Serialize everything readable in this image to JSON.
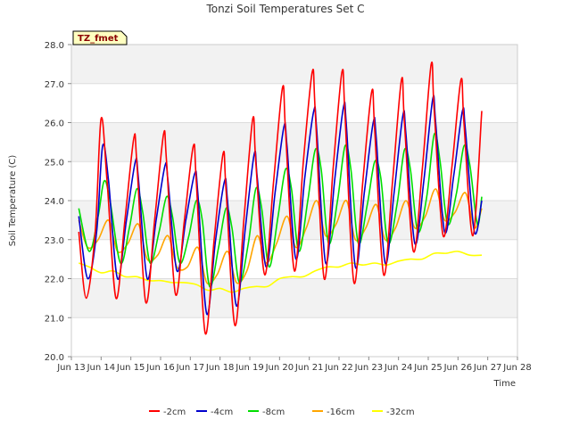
{
  "chart_data": {
    "type": "line",
    "title": "Tonzi Soil Temperatures Set C",
    "xlabel": "Time",
    "ylabel": "Soil Temperature (C)",
    "tag": "TZ_fmet",
    "xlim": [
      13,
      28
    ],
    "ylim": [
      20.0,
      28.0
    ],
    "x_ticks": [
      13,
      14,
      15,
      16,
      17,
      18,
      19,
      20,
      21,
      22,
      23,
      24,
      25,
      26,
      27,
      28
    ],
    "x_tick_labels": [
      "Jun 13",
      "Jun 14",
      "Jun 15",
      "Jun 16",
      "Jun 17",
      "Jun 18",
      "Jun 19",
      "Jun 20",
      "Jun 21",
      "Jun 22",
      "Jun 23",
      "Jun 24",
      "Jun 25",
      "Jun 26",
      "Jun 27",
      "Jun 28"
    ],
    "y_ticks": [
      20.0,
      21.0,
      22.0,
      23.0,
      24.0,
      25.0,
      26.0,
      27.0,
      28.0
    ],
    "y_tick_labels": [
      "20.0",
      "21.0",
      "22.0",
      "23.0",
      "24.0",
      "25.0",
      "26.0",
      "27.0",
      "28.0"
    ],
    "legend_position": "bottom",
    "series": [
      {
        "name": "-2cm",
        "color": "#ff0000",
        "x": [
          13.25,
          13.5,
          13.8,
          14.0,
          14.2,
          14.5,
          14.8,
          15.1,
          15.2,
          15.5,
          15.8,
          16.1,
          16.2,
          16.5,
          16.8,
          17.1,
          17.2,
          17.5,
          17.8,
          18.1,
          18.2,
          18.5,
          18.8,
          19.1,
          19.2,
          19.5,
          19.8,
          20.1,
          20.2,
          20.5,
          20.8,
          21.1,
          21.2,
          21.5,
          21.8,
          22.1,
          22.2,
          22.5,
          22.8,
          23.1,
          23.2,
          23.5,
          23.8,
          24.1,
          24.2,
          24.5,
          24.8,
          25.1,
          25.2,
          25.5,
          25.8,
          26.1,
          26.2,
          26.5,
          26.8
        ],
        "y": [
          23.2,
          21.5,
          23.2,
          26.1,
          24.5,
          21.5,
          23.5,
          25.6,
          25.0,
          21.4,
          23.5,
          25.7,
          25.0,
          21.6,
          23.5,
          25.4,
          24.5,
          20.6,
          23.0,
          25.2,
          24.3,
          20.8,
          23.5,
          26.1,
          25.0,
          22.1,
          24.5,
          26.9,
          25.8,
          22.2,
          25.0,
          27.3,
          26.3,
          22.0,
          24.8,
          27.3,
          26.2,
          21.9,
          24.5,
          26.8,
          25.8,
          22.1,
          24.5,
          27.1,
          26.0,
          22.7,
          24.8,
          27.5,
          26.3,
          23.1,
          24.9,
          27.1,
          26.0,
          23.1,
          26.3
        ]
      },
      {
        "name": "-4cm",
        "color": "#0000cc",
        "x": [
          13.25,
          13.55,
          13.85,
          14.05,
          14.25,
          14.55,
          14.85,
          15.15,
          15.25,
          15.55,
          15.85,
          16.15,
          16.25,
          16.55,
          16.85,
          17.15,
          17.25,
          17.55,
          17.85,
          18.15,
          18.25,
          18.55,
          18.85,
          19.15,
          19.25,
          19.55,
          19.85,
          20.15,
          20.25,
          20.55,
          20.85,
          21.15,
          21.25,
          21.55,
          21.85,
          22.15,
          22.25,
          22.55,
          22.85,
          23.15,
          23.25,
          23.55,
          23.85,
          24.15,
          24.25,
          24.55,
          24.85,
          25.15,
          25.25,
          25.55,
          25.85,
          26.15,
          26.25,
          26.55,
          26.8
        ],
        "y": [
          23.6,
          22.0,
          23.2,
          25.4,
          24.5,
          22.0,
          23.5,
          25.0,
          24.6,
          22.0,
          23.5,
          24.9,
          24.5,
          22.2,
          23.5,
          24.7,
          24.2,
          21.1,
          23.0,
          24.5,
          24.0,
          21.3,
          23.3,
          25.2,
          24.6,
          22.3,
          24.2,
          25.9,
          25.4,
          22.5,
          24.6,
          26.3,
          25.8,
          22.4,
          24.5,
          26.4,
          25.9,
          22.3,
          24.2,
          26.0,
          25.6,
          22.4,
          24.2,
          26.2,
          25.7,
          22.9,
          24.5,
          26.6,
          26.0,
          23.2,
          24.6,
          26.3,
          25.8,
          23.2,
          24.0
        ]
      },
      {
        "name": "-8cm",
        "color": "#00dd00",
        "x": [
          13.25,
          13.6,
          13.9,
          14.1,
          14.3,
          14.65,
          14.95,
          15.2,
          15.4,
          15.65,
          15.95,
          16.2,
          16.4,
          16.65,
          16.95,
          17.2,
          17.4,
          17.65,
          17.95,
          18.2,
          18.4,
          18.65,
          18.95,
          19.2,
          19.4,
          19.65,
          19.95,
          20.2,
          20.4,
          20.65,
          20.95,
          21.2,
          21.4,
          21.65,
          21.95,
          22.2,
          22.4,
          22.65,
          22.95,
          23.2,
          23.4,
          23.65,
          23.95,
          24.2,
          24.4,
          24.65,
          24.95,
          25.2,
          25.4,
          25.65,
          25.95,
          26.2,
          26.4,
          26.65,
          26.8
        ],
        "y": [
          23.8,
          22.7,
          23.6,
          24.5,
          24.0,
          22.4,
          23.3,
          24.3,
          23.7,
          22.4,
          23.2,
          24.1,
          23.6,
          22.4,
          23.1,
          24.0,
          23.5,
          21.8,
          22.8,
          23.8,
          23.3,
          21.9,
          22.9,
          24.3,
          23.8,
          22.3,
          23.6,
          24.8,
          24.3,
          22.7,
          24.0,
          25.3,
          24.8,
          22.9,
          24.0,
          25.4,
          24.8,
          22.9,
          23.9,
          25.0,
          24.6,
          22.9,
          23.9,
          25.3,
          24.8,
          23.2,
          24.1,
          25.7,
          25.0,
          23.4,
          24.2,
          25.4,
          24.9,
          23.4,
          24.1
        ]
      },
      {
        "name": "-16cm",
        "color": "#ffa500",
        "x": [
          13.25,
          13.55,
          13.9,
          14.25,
          14.55,
          14.9,
          15.25,
          15.55,
          15.9,
          16.25,
          16.55,
          16.9,
          17.25,
          17.55,
          17.9,
          18.25,
          18.55,
          18.9,
          19.25,
          19.55,
          19.9,
          20.25,
          20.55,
          20.9,
          21.25,
          21.55,
          21.9,
          22.25,
          22.55,
          22.9,
          23.25,
          23.55,
          23.9,
          24.25,
          24.55,
          24.9,
          25.25,
          25.55,
          25.9,
          26.25,
          26.55,
          26.8
        ],
        "y": [
          23.5,
          22.8,
          23.0,
          23.5,
          22.7,
          22.9,
          23.4,
          22.5,
          22.6,
          23.1,
          22.3,
          22.3,
          22.8,
          21.9,
          22.1,
          22.7,
          21.9,
          22.2,
          23.1,
          22.4,
          22.9,
          23.6,
          22.8,
          23.3,
          24.0,
          23.1,
          23.4,
          24.0,
          23.0,
          23.3,
          23.9,
          23.0,
          23.3,
          24.0,
          23.3,
          23.6,
          24.3,
          23.5,
          23.7,
          24.2,
          23.3,
          23.8
        ]
      },
      {
        "name": "-32cm",
        "color": "#ffff00",
        "x": [
          13.25,
          13.6,
          14.0,
          14.4,
          14.8,
          15.2,
          15.6,
          16.0,
          16.4,
          16.8,
          17.2,
          17.6,
          18.0,
          18.4,
          18.8,
          19.2,
          19.6,
          20.0,
          20.4,
          20.8,
          21.2,
          21.6,
          22.0,
          22.4,
          22.8,
          23.2,
          23.6,
          24.0,
          24.4,
          24.8,
          25.2,
          25.6,
          26.0,
          26.4,
          26.8
        ],
        "y": [
          22.4,
          22.3,
          22.15,
          22.2,
          22.05,
          22.05,
          21.95,
          21.95,
          21.9,
          21.9,
          21.85,
          21.7,
          21.75,
          21.65,
          21.75,
          21.8,
          21.8,
          22.0,
          22.05,
          22.05,
          22.2,
          22.3,
          22.3,
          22.4,
          22.35,
          22.4,
          22.35,
          22.45,
          22.5,
          22.5,
          22.65,
          22.65,
          22.7,
          22.6,
          22.6
        ]
      }
    ]
  }
}
